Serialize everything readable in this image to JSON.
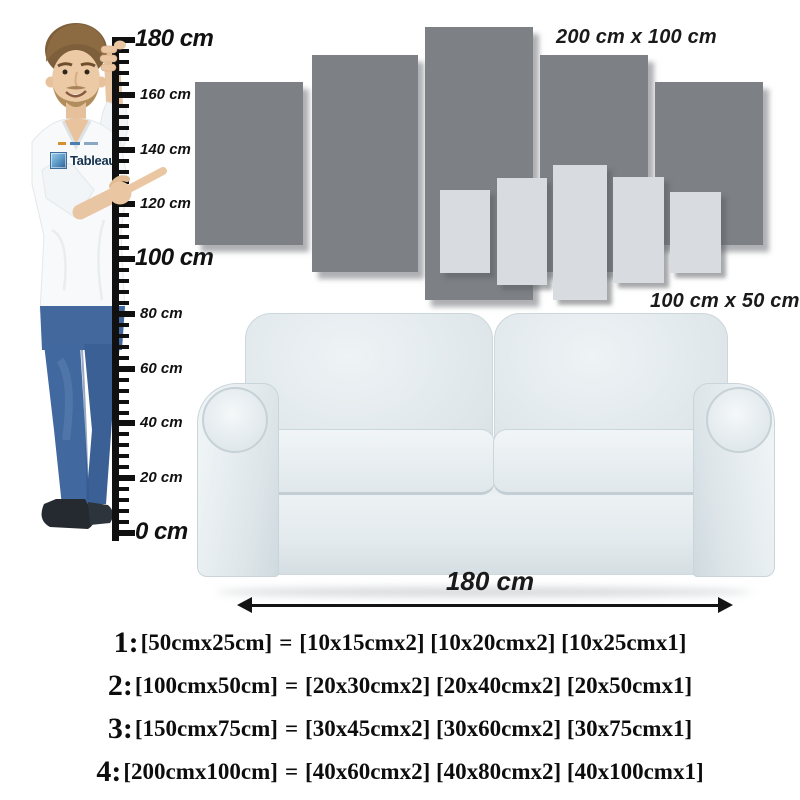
{
  "figure": {
    "title_labels": {
      "large_set_size": "200 cm x 100 cm",
      "small_set_size": "100 cm x 50 cm",
      "sofa_width": "180 cm"
    },
    "ruler": {
      "unit": "cm",
      "min": 0,
      "max": 180,
      "minor_step": 4,
      "major_step": 20,
      "labels": [
        {
          "value": 180,
          "text": "180 cm",
          "big": true
        },
        {
          "value": 160,
          "text": "160 cm",
          "big": false
        },
        {
          "value": 140,
          "text": "140 cm",
          "big": false
        },
        {
          "value": 120,
          "text": "120 cm",
          "big": false
        },
        {
          "value": 100,
          "text": "100 cm",
          "big": true
        },
        {
          "value": 80,
          "text": "80 cm",
          "big": false
        },
        {
          "value": 60,
          "text": "60 cm",
          "big": false
        },
        {
          "value": 40,
          "text": "40 cm",
          "big": false
        },
        {
          "value": 20,
          "text": "20 cm",
          "big": false
        },
        {
          "value": 0,
          "text": "0 cm",
          "big": true
        }
      ]
    },
    "shirt_logo": {
      "name": "Tableau"
    },
    "size_options": [
      {
        "prefix": "1:",
        "set": "[50cmx25cm]",
        "equals": "=",
        "panels": "[10x15cmx2] [10x20cmx2] [10x25cmx1]"
      },
      {
        "prefix": "2:",
        "set": "[100cmx50cm]",
        "equals": "=",
        "panels": "[20x30cmx2] [20x40cmx2] [20x50cmx1]"
      },
      {
        "prefix": "3:",
        "set": "[150cmx75cm]",
        "equals": "=",
        "panels": "[30x45cmx2] [30x60cmx2] [30x75cmx1]"
      },
      {
        "prefix": "4:",
        "set": "[200cmx100cm]",
        "equals": "=",
        "panels": "[40x60cmx2] [40x80cmx2] [40x100cmx1]"
      }
    ],
    "colors": {
      "dark_panel": "#7d8084",
      "light_panel": "#d8dce0",
      "ruler": "#101010",
      "text": "#111111",
      "denim": "#41689f",
      "denim_dark": "#3a6096",
      "skin": "#eac7a3",
      "hair": "#85653f",
      "sofa_light": "#eef3f5",
      "sofa_mid": "#dde5e9",
      "sofa_dark": "#c9d5da",
      "shirt": "#f7f9fa"
    }
  }
}
